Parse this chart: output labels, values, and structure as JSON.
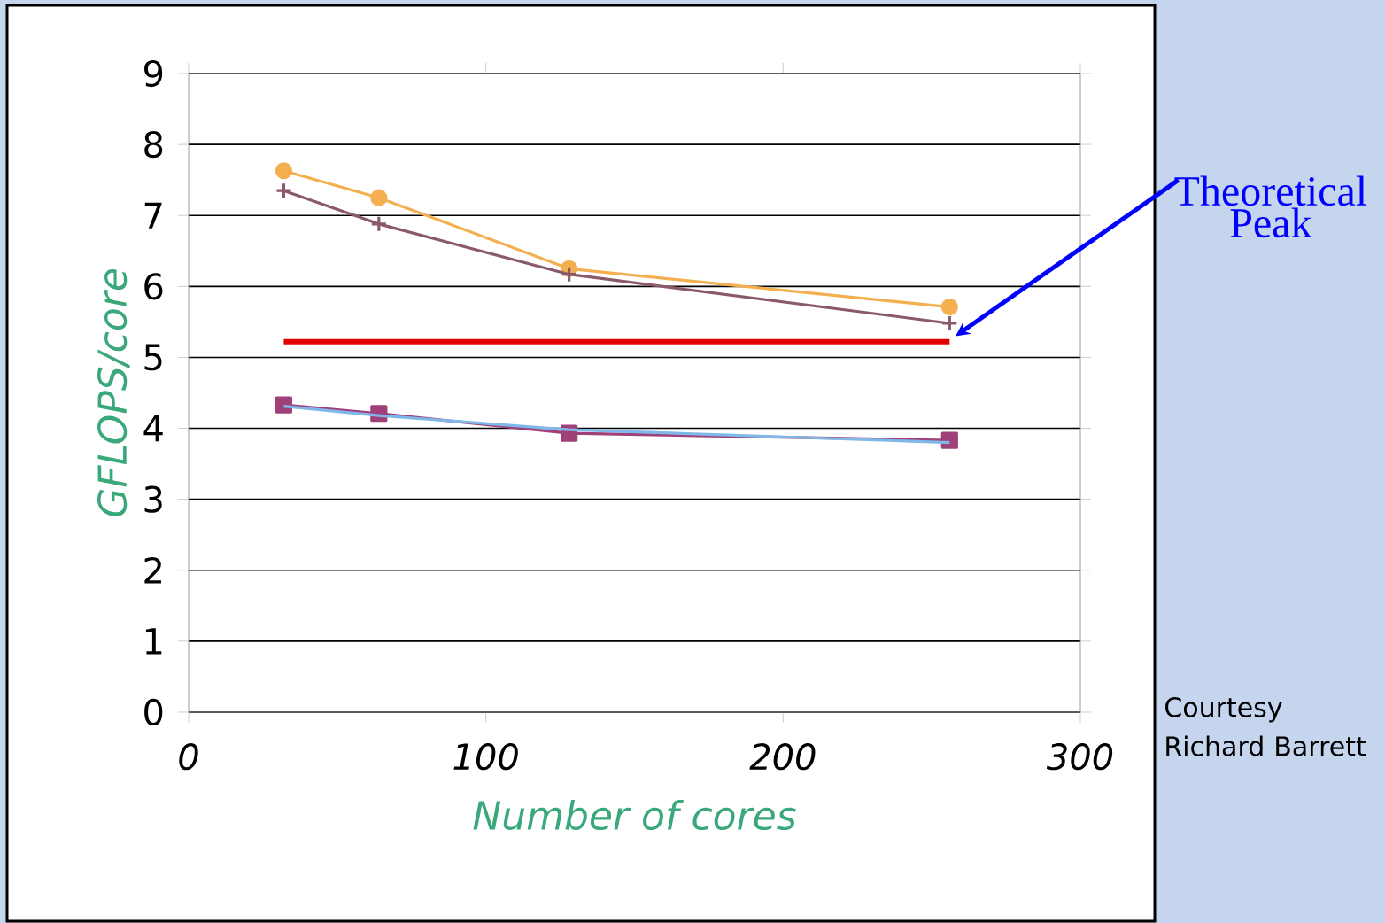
{
  "chart_data": {
    "type": "line",
    "xlabel": "Number of cores",
    "ylabel": "GFLOPS/core",
    "x": [
      32,
      64,
      128,
      256
    ],
    "xlim": [
      0,
      300
    ],
    "ylim": [
      0,
      9
    ],
    "xticks": [
      0,
      100,
      200,
      300
    ],
    "yticks": [
      0,
      1,
      2,
      3,
      4,
      5,
      6,
      7,
      8,
      9
    ],
    "grid": "y",
    "series": [
      {
        "color": "#f4b050",
        "marker": "circle",
        "values": [
          7.63,
          7.25,
          6.25,
          5.71
        ]
      },
      {
        "color": "#8b5a6a",
        "marker": "cross",
        "values": [
          7.35,
          6.88,
          6.17,
          5.48
        ]
      },
      {
        "color": "#a0407a",
        "marker": "square",
        "values": [
          4.33,
          4.21,
          3.93,
          3.83
        ]
      },
      {
        "color": "#7fb7e8",
        "marker": "none",
        "values": [
          4.31,
          4.18,
          3.98,
          3.8
        ]
      },
      {
        "color": "#e00000",
        "marker": "none",
        "x": [
          32,
          256
        ],
        "values": [
          5.22,
          5.22
        ]
      }
    ],
    "annotations": [
      "Theoretical Peak",
      "Courtesy Richard Barrett"
    ]
  }
}
